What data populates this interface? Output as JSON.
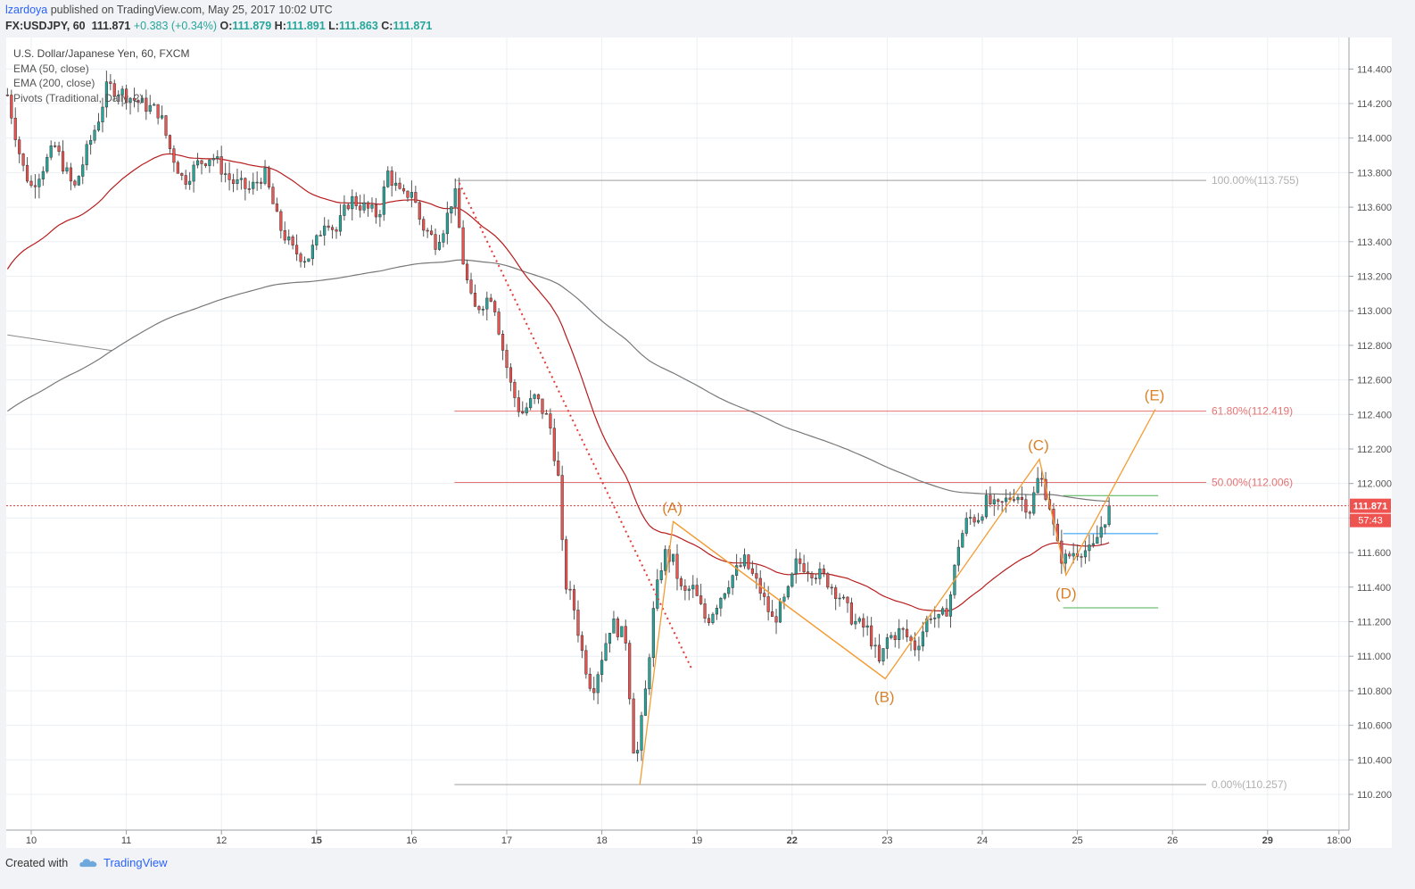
{
  "header": {
    "author": "lzardoya",
    "published_text": " published on TradingView.com, May 25, 2017 10:02 UTC",
    "symbol": "FX:USDJPY, 60",
    "last": "111.871",
    "change": "+0.383 (+0.34%)",
    "o_label": "O:",
    "o": "111.879",
    "h_label": "H:",
    "h": "111.891",
    "l_label": "L:",
    "l": "111.863",
    "c_label": "C:",
    "c": "111.871"
  },
  "legend": {
    "title": "U.S. Dollar/Japanese Yen, 60, FXCM",
    "ema50": "EMA (50, close)",
    "ema200": "EMA (200, close)",
    "pivots": "Pivots (Traditional, Daily, 2)"
  },
  "footer": {
    "created_with": "Created with",
    "brand": "TradingView"
  },
  "colors": {
    "up": "#26a69a",
    "down": "#ef5350",
    "ema50": "#b71c1c",
    "ema200": "#787878",
    "fib_grey": "#9e9e9e",
    "fib_red": "#e57373",
    "wave": "#f39c34",
    "price_label_bg": "#ef5350"
  },
  "chart_data": {
    "type": "candlestick",
    "timeframe": "60",
    "ylim": [
      110.1,
      114.55
    ],
    "y_ticks": [
      110.2,
      110.4,
      110.6,
      110.8,
      111.0,
      111.2,
      111.4,
      111.6,
      111.8,
      112.0,
      112.2,
      112.4,
      112.6,
      112.8,
      113.0,
      113.2,
      113.4,
      113.6,
      113.8,
      114.0,
      114.2,
      114.4
    ],
    "y_tick_labels": [
      "110.200",
      "110.400",
      "110.600",
      "110.800",
      "111.000",
      "111.200",
      "111.400",
      "111.600",
      "111.800",
      "112.000",
      "112.200",
      "112.400",
      "112.600",
      "112.800",
      "113.000",
      "113.200",
      "113.400",
      "113.600",
      "113.800",
      "114.000",
      "114.200",
      "114.400"
    ],
    "x_ticks": [
      {
        "label": "10",
        "day": 0.0,
        "bold": false
      },
      {
        "label": "11",
        "day": 1.0,
        "bold": false
      },
      {
        "label": "12",
        "day": 2.0,
        "bold": false
      },
      {
        "label": "15",
        "day": 3.0,
        "bold": true
      },
      {
        "label": "16",
        "day": 4.0,
        "bold": false
      },
      {
        "label": "17",
        "day": 5.0,
        "bold": false
      },
      {
        "label": "18",
        "day": 6.0,
        "bold": false
      },
      {
        "label": "19",
        "day": 7.0,
        "bold": false
      },
      {
        "label": "22",
        "day": 8.0,
        "bold": true
      },
      {
        "label": "23",
        "day": 9.0,
        "bold": false
      },
      {
        "label": "24",
        "day": 10.0,
        "bold": false
      },
      {
        "label": "25",
        "day": 11.0,
        "bold": false
      },
      {
        "label": "26",
        "day": 12.0,
        "bold": false
      },
      {
        "label": "29",
        "day": 13.0,
        "bold": true
      },
      {
        "label": "18:00",
        "day": 13.75,
        "bold": false
      }
    ],
    "last_price": 111.871,
    "last_price_label": "111.871",
    "countdown_label": "57:43",
    "fib_levels": [
      {
        "label": "100.00%(113.755)",
        "price": 113.755,
        "color": "grey"
      },
      {
        "label": "61.80%(112.419)",
        "price": 112.419,
        "color": "red"
      },
      {
        "label": "50.00%(112.006)",
        "price": 112.006,
        "color": "red"
      },
      {
        "label": "0.00%(110.257)",
        "price": 110.257,
        "color": "grey"
      }
    ],
    "fib_start_day": 4.45,
    "wave_points": [
      {
        "label": "",
        "day": 6.4,
        "price": 110.257
      },
      {
        "label": "(A)",
        "day": 6.75,
        "price": 111.78
      },
      {
        "label": "(B)",
        "day": 8.98,
        "price": 110.87
      },
      {
        "label": "(C)",
        "day": 10.6,
        "price": 112.14
      },
      {
        "label": "(D)",
        "day": 10.88,
        "price": 111.47
      },
      {
        "label": "(E)",
        "day": 11.82,
        "price": 112.43
      }
    ],
    "trendline": {
      "start_day": 4.5,
      "start_price": 113.74,
      "end_day": 6.95,
      "end_price": 110.92
    },
    "pivot_segments": [
      {
        "start_day": -0.25,
        "end_day": 0.85,
        "start_price": 112.86,
        "end_price": 112.77,
        "color": "grey"
      },
      {
        "start_day": 10.85,
        "end_day": 11.85,
        "start_price": 111.93,
        "end_price": 111.93,
        "color": "green"
      },
      {
        "start_day": 10.85,
        "end_day": 11.85,
        "start_price": 111.71,
        "end_price": 111.71,
        "color": "blue"
      },
      {
        "start_day": 10.85,
        "end_day": 11.85,
        "start_price": 111.28,
        "end_price": 111.28,
        "color": "green"
      }
    ],
    "price_path": [
      [
        -0.25,
        114.25
      ],
      [
        -0.1,
        113.85
      ],
      [
        0.0,
        113.72
      ],
      [
        0.25,
        113.95
      ],
      [
        0.45,
        113.7
      ],
      [
        0.6,
        113.95
      ],
      [
        0.7,
        114.1
      ],
      [
        0.8,
        114.3
      ],
      [
        0.9,
        114.28
      ],
      [
        1.0,
        114.25
      ],
      [
        1.15,
        114.2
      ],
      [
        1.35,
        114.15
      ],
      [
        1.45,
        113.95
      ],
      [
        1.6,
        113.75
      ],
      [
        1.75,
        113.85
      ],
      [
        1.9,
        113.9
      ],
      [
        2.1,
        113.75
      ],
      [
        2.3,
        113.7
      ],
      [
        2.45,
        113.8
      ],
      [
        2.6,
        113.5
      ],
      [
        2.75,
        113.35
      ],
      [
        2.9,
        113.3
      ],
      [
        3.0,
        113.4
      ],
      [
        3.1,
        113.55
      ],
      [
        3.2,
        113.45
      ],
      [
        3.35,
        113.65
      ],
      [
        3.5,
        113.6
      ],
      [
        3.65,
        113.55
      ],
      [
        3.75,
        113.8
      ],
      [
        3.9,
        113.65
      ],
      [
        4.0,
        113.7
      ],
      [
        4.1,
        113.5
      ],
      [
        4.25,
        113.4
      ],
      [
        4.35,
        113.5
      ],
      [
        4.45,
        113.7
      ],
      [
        4.55,
        113.25
      ],
      [
        4.65,
        113.0
      ],
      [
        4.75,
        113.05
      ],
      [
        4.85,
        113.1
      ],
      [
        4.95,
        112.8
      ],
      [
        5.05,
        112.55
      ],
      [
        5.15,
        112.4
      ],
      [
        5.3,
        112.5
      ],
      [
        5.45,
        112.35
      ],
      [
        5.55,
        112.0
      ],
      [
        5.6,
        111.45
      ],
      [
        5.7,
        111.3
      ],
      [
        5.8,
        111.0
      ],
      [
        5.9,
        110.8
      ],
      [
        6.0,
        111.0
      ],
      [
        6.1,
        111.2
      ],
      [
        6.25,
        111.1
      ],
      [
        6.35,
        110.35
      ],
      [
        6.45,
        110.75
      ],
      [
        6.55,
        111.3
      ],
      [
        6.65,
        111.6
      ],
      [
        6.75,
        111.55
      ],
      [
        6.85,
        111.35
      ],
      [
        6.95,
        111.4
      ],
      [
        7.1,
        111.2
      ],
      [
        7.25,
        111.35
      ],
      [
        7.35,
        111.45
      ],
      [
        7.5,
        111.55
      ],
      [
        7.65,
        111.4
      ],
      [
        7.8,
        111.2
      ],
      [
        7.95,
        111.35
      ],
      [
        8.05,
        111.55
      ],
      [
        8.2,
        111.5
      ],
      [
        8.35,
        111.45
      ],
      [
        8.5,
        111.35
      ],
      [
        8.65,
        111.2
      ],
      [
        8.8,
        111.15
      ],
      [
        8.92,
        110.95
      ],
      [
        9.0,
        111.1
      ],
      [
        9.15,
        111.15
      ],
      [
        9.3,
        111.05
      ],
      [
        9.45,
        111.25
      ],
      [
        9.55,
        111.2
      ],
      [
        9.65,
        111.3
      ],
      [
        9.75,
        111.65
      ],
      [
        9.85,
        111.8
      ],
      [
        9.95,
        111.8
      ],
      [
        10.05,
        111.9
      ],
      [
        10.15,
        111.85
      ],
      [
        10.25,
        111.9
      ],
      [
        10.35,
        111.95
      ],
      [
        10.5,
        111.85
      ],
      [
        10.6,
        112.05
      ],
      [
        10.7,
        111.9
      ],
      [
        10.78,
        111.65
      ],
      [
        10.85,
        111.55
      ],
      [
        10.95,
        111.6
      ],
      [
        11.05,
        111.62
      ],
      [
        11.15,
        111.6
      ],
      [
        11.25,
        111.75
      ],
      [
        11.35,
        111.871
      ]
    ]
  }
}
